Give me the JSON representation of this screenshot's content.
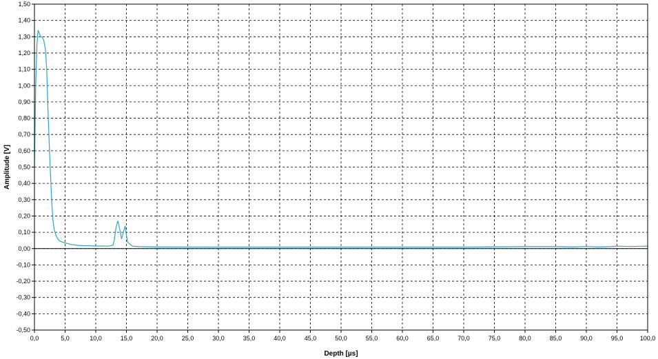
{
  "chart_data": {
    "type": "line",
    "title": "",
    "xlabel": "Depth [µs]",
    "ylabel": "Amplitude [V]",
    "xlim": [
      0,
      100
    ],
    "ylim": [
      -0.5,
      1.5
    ],
    "x_ticks": [
      "0,0",
      "5,0",
      "10,0",
      "15,0",
      "20,0",
      "25,0",
      "30,0",
      "35,0",
      "40,0",
      "45,0",
      "50,0",
      "55,0",
      "60,0",
      "65,0",
      "70,0",
      "75,0",
      "80,0",
      "85,0",
      "90,0",
      "95,0",
      "100,0"
    ],
    "y_ticks": [
      "1,50",
      "1,40",
      "1,30",
      "1,20",
      "1,10",
      "1,00",
      "0,90",
      "0,80",
      "0,70",
      "0,60",
      "0,50",
      "0,40",
      "0,30",
      "0,20",
      "0,10",
      "0,00",
      "-0,10",
      "-0,20",
      "-0,30",
      "-0,40",
      "-0,50"
    ],
    "grid": true,
    "line_color": "#2aa6c6",
    "series": [
      {
        "x": [
          0.0,
          0.2,
          0.4,
          0.6,
          0.8,
          1.0,
          1.2,
          1.5,
          1.8,
          2.0,
          2.2,
          2.5,
          2.8,
          3.0,
          3.2,
          3.5,
          3.8,
          4.0,
          4.5,
          5.0,
          6.0,
          7.0,
          8.0,
          9.0,
          10.0,
          12.0,
          12.8,
          13.0,
          13.3,
          13.6,
          13.9,
          14.2,
          14.5,
          14.8,
          15.0,
          15.2,
          15.5,
          15.8,
          16.0,
          17.0,
          20.0,
          30.0,
          40.0,
          50.0,
          60.0,
          70.0,
          80.0,
          85.0,
          88.0,
          90.0,
          92.0,
          94.0,
          95.0,
          97.0,
          100.0
        ],
        "y": [
          0.5,
          1.0,
          1.25,
          1.34,
          1.32,
          1.3,
          1.3,
          1.28,
          1.22,
          1.1,
          0.85,
          0.55,
          0.3,
          0.18,
          0.12,
          0.08,
          0.06,
          0.05,
          0.04,
          0.035,
          0.025,
          0.02,
          0.018,
          0.017,
          0.016,
          0.015,
          0.02,
          0.05,
          0.13,
          0.17,
          0.12,
          0.06,
          0.1,
          0.14,
          0.08,
          0.04,
          0.03,
          0.02,
          0.015,
          0.012,
          0.01,
          0.009,
          0.009,
          0.009,
          0.009,
          0.009,
          0.012,
          0.012,
          0.01,
          0.013,
          0.01,
          0.012,
          0.015,
          0.013,
          0.015
        ]
      }
    ]
  }
}
